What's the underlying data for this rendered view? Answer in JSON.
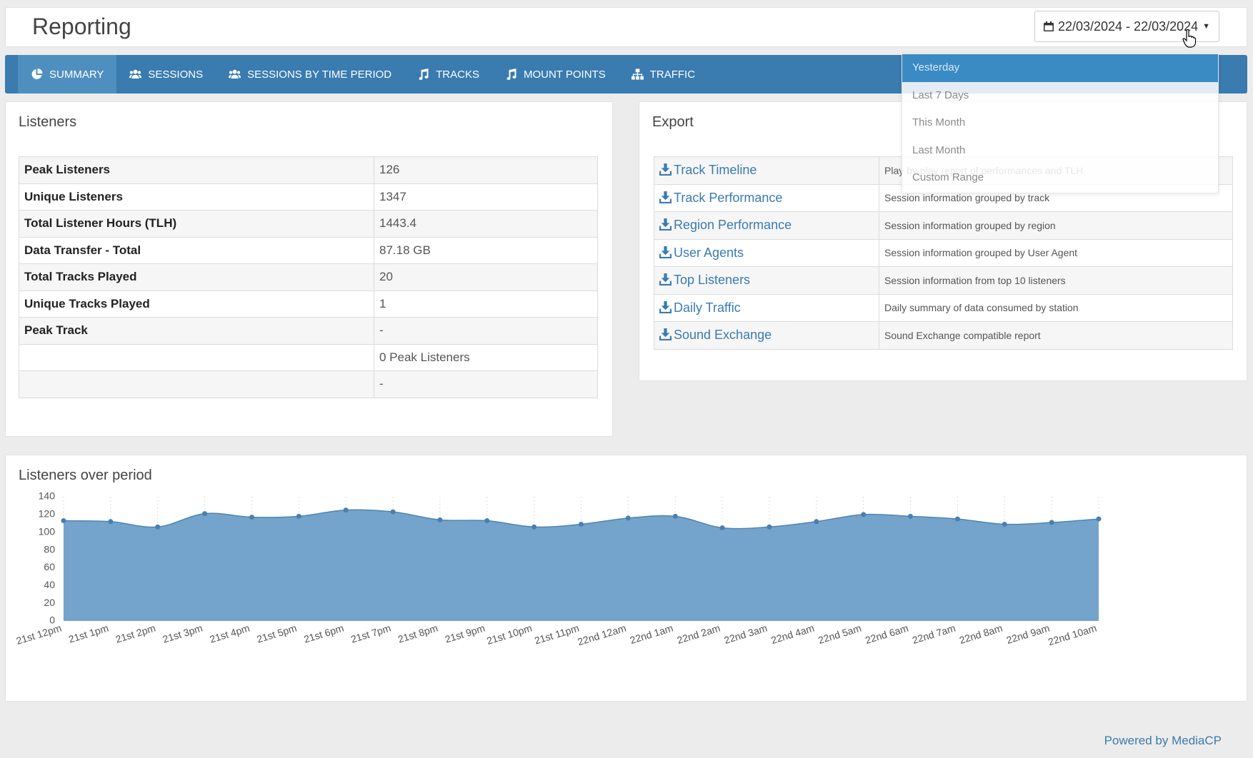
{
  "header": {
    "title": "Reporting",
    "date_range": "22/03/2024 - 22/03/2024"
  },
  "nav": {
    "items": [
      {
        "label": "Summary",
        "icon": "pie-chart-icon"
      },
      {
        "label": "Sessions",
        "icon": "users-icon"
      },
      {
        "label": "Sessions by time period",
        "icon": "users-icon"
      },
      {
        "label": "Tracks",
        "icon": "music-icon"
      },
      {
        "label": "Mount Points",
        "icon": "music-icon"
      },
      {
        "label": "Traffic",
        "icon": "sitemap-icon"
      }
    ],
    "active_index": 0
  },
  "date_dropdown": {
    "items": [
      "Yesterday",
      "Last 7 Days",
      "This Month",
      "Last Month",
      "Custom Range"
    ],
    "active_index": 0
  },
  "listeners": {
    "title": "Listeners",
    "rows": [
      {
        "label": "Peak Listeners",
        "value": "126"
      },
      {
        "label": "Unique Listeners",
        "value": "1347"
      },
      {
        "label": "Total Listener Hours (TLH)",
        "value": "1443.4"
      },
      {
        "label": "Data Transfer - Total",
        "value": "87.18 GB"
      },
      {
        "label": "Total Tracks Played",
        "value": "20"
      },
      {
        "label": "Unique Tracks Played",
        "value": "1"
      },
      {
        "label": "Peak Track",
        "value": "-"
      },
      {
        "label": "",
        "value": "0 Peak Listeners"
      },
      {
        "label": "",
        "value": "-"
      }
    ]
  },
  "export": {
    "title": "Export",
    "rows": [
      {
        "label": "Track Timeline",
        "desc": "Play by play report of performances and TLH"
      },
      {
        "label": "Track Performance",
        "desc": "Session information grouped by track"
      },
      {
        "label": "Region Performance",
        "desc": "Session information grouped by region"
      },
      {
        "label": "User Agents",
        "desc": "Session information grouped by User Agent"
      },
      {
        "label": "Top Listeners",
        "desc": "Session information from top 10 listeners"
      },
      {
        "label": "Daily Traffic",
        "desc": "Daily summary of data consumed by station"
      },
      {
        "label": "Sound Exchange",
        "desc": "Sound Exchange compatible report"
      }
    ]
  },
  "chart_panel": {
    "title": "Listeners over period"
  },
  "chart_data": {
    "type": "area",
    "x": [
      "21st 12pm",
      "21st 1pm",
      "21st 2pm",
      "21st 3pm",
      "21st 4pm",
      "21st 5pm",
      "21st 6pm",
      "21st 7pm",
      "21st 8pm",
      "21st 9pm",
      "21st 10pm",
      "21st 11pm",
      "22nd 12am",
      "22nd 1am",
      "22nd 2am",
      "22nd 3am",
      "22nd 4am",
      "22nd 5am",
      "22nd 6am",
      "22nd 7am",
      "22nd 8am",
      "22nd 9am",
      "22nd 10am"
    ],
    "series": [
      {
        "values": [
          113,
          112,
          106,
          121,
          117,
          118,
          125,
          123,
          114,
          113,
          106,
          109,
          116,
          118,
          105,
          106,
          112,
          120,
          118,
          115,
          109,
          111,
          115
        ]
      }
    ],
    "ylim": [
      0,
      140
    ],
    "yticks": [
      0,
      20,
      40,
      60,
      80,
      100,
      120,
      140
    ],
    "grid": "vertical",
    "fill_color": "#6d9fc8",
    "line_color": "#4f84b3"
  },
  "footer": {
    "powered_by": "Powered by MediaCP"
  }
}
